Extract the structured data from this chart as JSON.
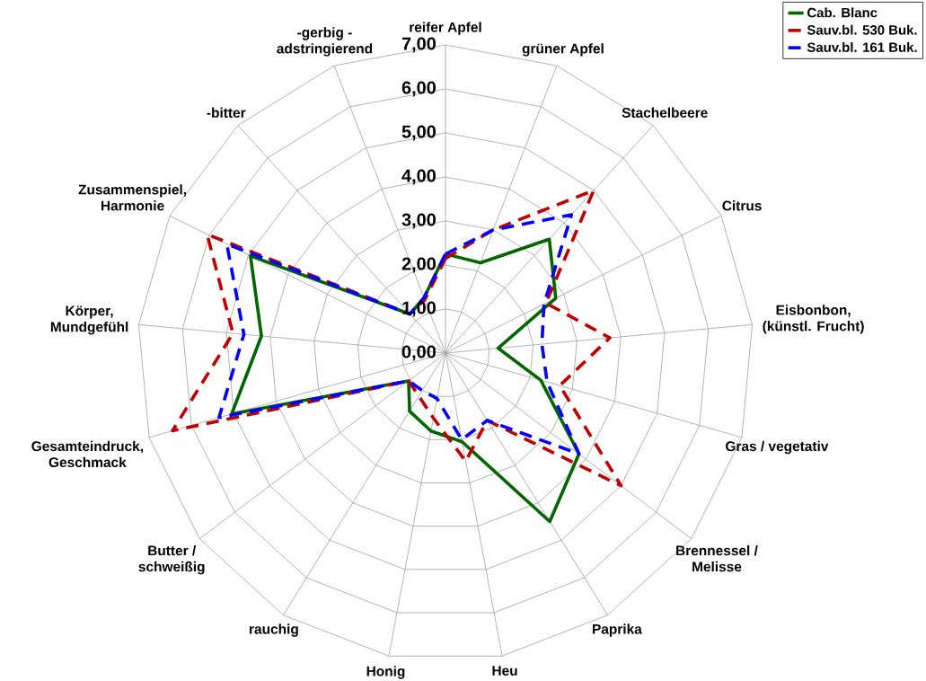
{
  "chart_data": {
    "type": "radar",
    "categories": [
      "reifer Apfel",
      "grüner Apfel",
      "Stachelbeere",
      "Citrus",
      "Eisbonbon, (künstl. Frucht)",
      "Gras / vegetativ",
      "Brennessel / Melisse",
      "Paprika",
      "Heu",
      "Honig",
      "rauchig",
      "Butter / schweißig",
      "Gesamteindruck, Geschmack",
      "Körper, Mundgefühl",
      "Zusammenspiel, Harmonie",
      "-bitter",
      "-gerbig - adstringierend"
    ],
    "series": [
      {
        "name": "Cab. Blanc",
        "color": "#006600",
        "line_style": "solid",
        "values": [
          2.25,
          2.2,
          3.5,
          2.8,
          1.2,
          2.25,
          3.8,
          4.5,
          2.05,
          1.8,
          1.55,
          1.05,
          5.05,
          4.2,
          4.95,
          1.2,
          1.35
        ]
      },
      {
        "name": "Sauv.bl. 530 Buk.",
        "color": "#c00000",
        "line_style": "dashed",
        "values": [
          2.15,
          3.0,
          5.0,
          2.55,
          3.75,
          2.7,
          5.0,
          1.8,
          2.5,
          1.5,
          1.15,
          1.05,
          6.45,
          4.85,
          6.05,
          1.2,
          1.3
        ]
      },
      {
        "name": "Sauv.bl. 161 Buk.",
        "color": "#0000ff",
        "line_style": "dashed",
        "values": [
          2.25,
          3.0,
          4.25,
          2.5,
          2.2,
          2.4,
          3.8,
          1.8,
          2.0,
          1.05,
          1.0,
          1.05,
          5.35,
          4.6,
          5.55,
          1.2,
          1.35
        ]
      }
    ],
    "ylim": [
      0,
      7
    ],
    "yticks": [
      {
        "value": 0,
        "label": "0,00"
      },
      {
        "value": 1,
        "label": "1,00"
      },
      {
        "value": 2,
        "label": "2,00"
      },
      {
        "value": 3,
        "label": "3,00"
      },
      {
        "value": 4,
        "label": "4,00"
      },
      {
        "value": 5,
        "label": "5,00"
      },
      {
        "value": 6,
        "label": "6,00"
      },
      {
        "value": 7,
        "label": "7,00"
      }
    ],
    "grid": true,
    "legend": "top right"
  }
}
